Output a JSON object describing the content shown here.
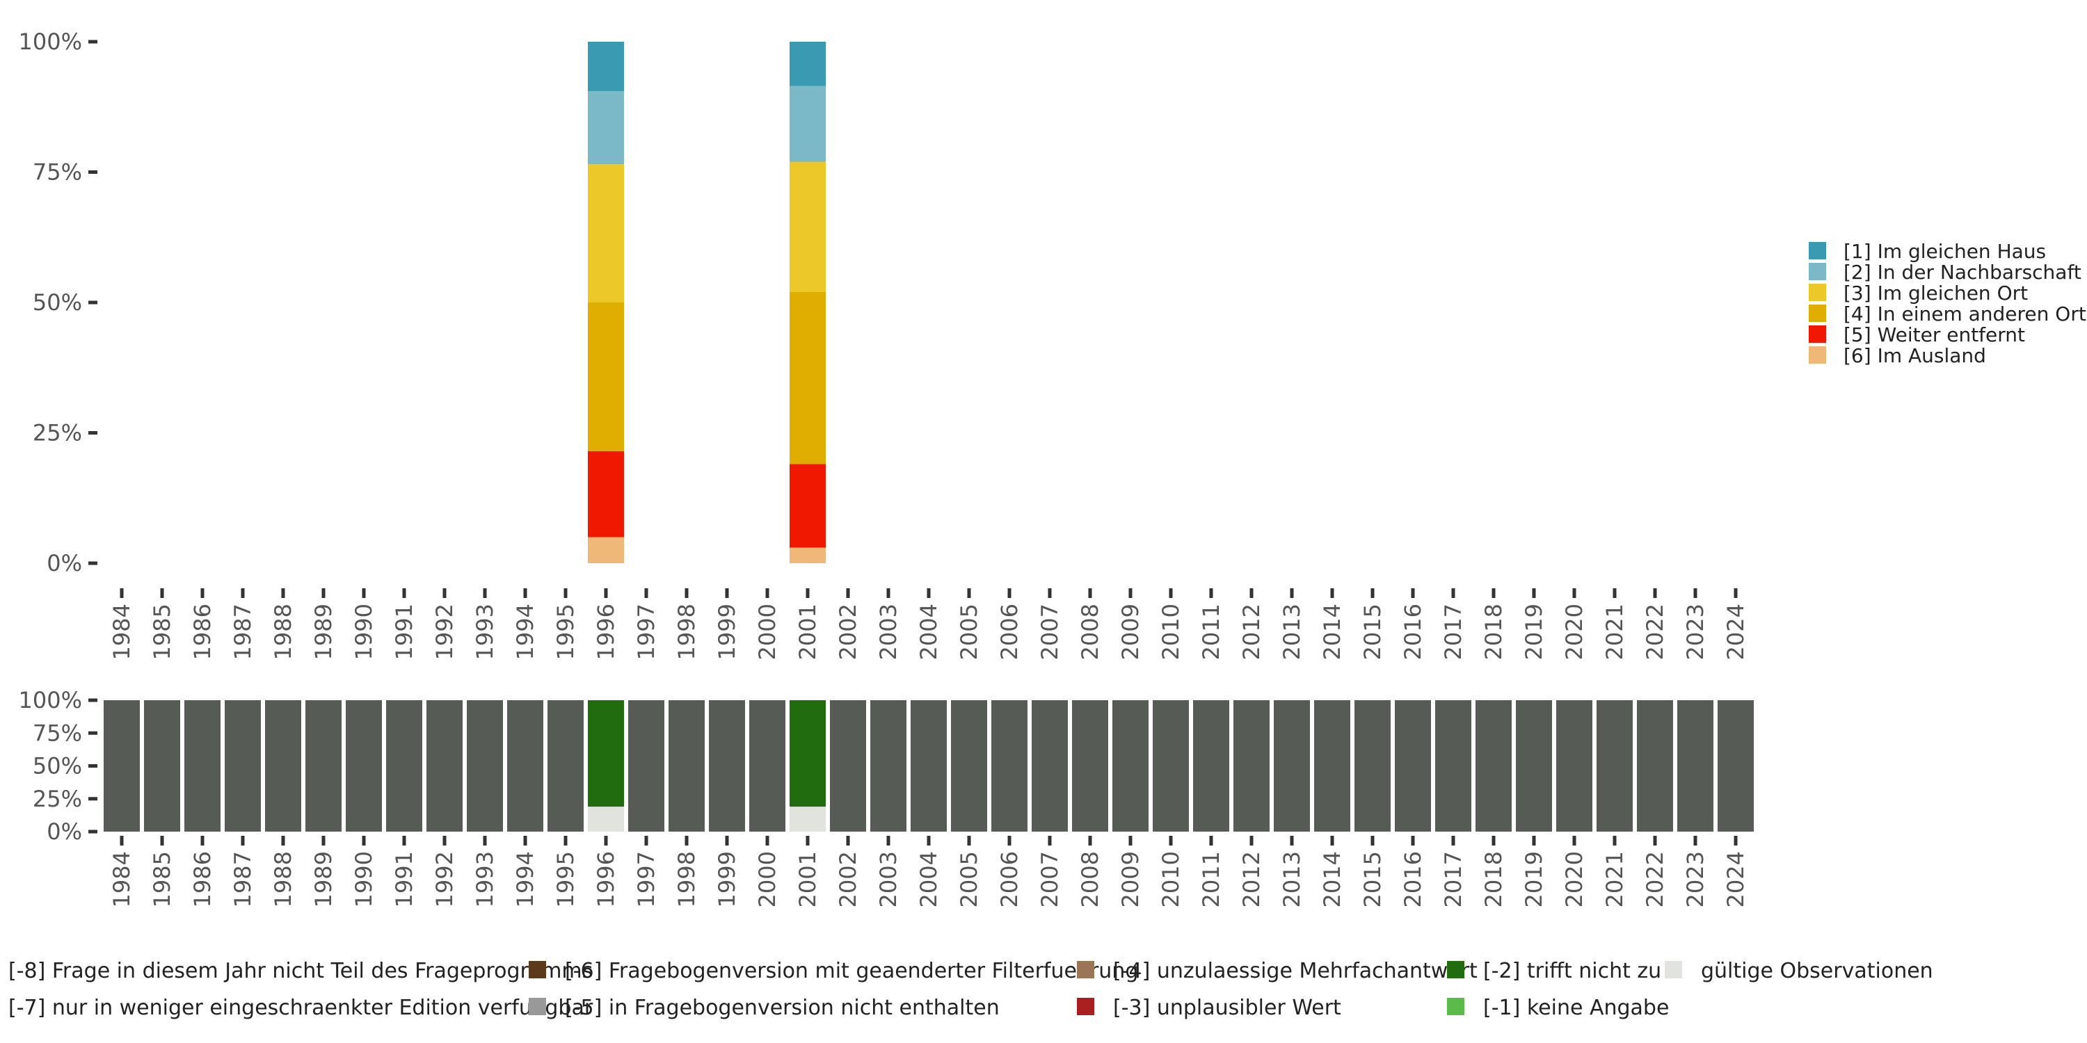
{
  "chart_data": [
    {
      "type": "bar",
      "stacked": true,
      "percent": true,
      "x": [
        "1984",
        "1985",
        "1986",
        "1987",
        "1988",
        "1989",
        "1990",
        "1991",
        "1992",
        "1993",
        "1994",
        "1995",
        "1996",
        "1997",
        "1998",
        "1999",
        "2000",
        "2001",
        "2002",
        "2003",
        "2004",
        "2005",
        "2006",
        "2007",
        "2008",
        "2009",
        "2010",
        "2011",
        "2012",
        "2013",
        "2014",
        "2015",
        "2016",
        "2017",
        "2018",
        "2019",
        "2020",
        "2021",
        "2022",
        "2023",
        "2024"
      ],
      "ylim": [
        0,
        100
      ],
      "yticks": [
        "0%",
        "25%",
        "50%",
        "75%",
        "100%"
      ],
      "legend_position": "right",
      "series": [
        {
          "name": "[6] Im Ausland",
          "color": "#F0B878",
          "values": {
            "1996": 5,
            "2001": 3
          }
        },
        {
          "name": "[5] Weiter entfernt",
          "color": "#F01800",
          "values": {
            "1996": 16.5,
            "2001": 16
          }
        },
        {
          "name": "[4] In einem anderen Ort",
          "color": "#E0AE00",
          "values": {
            "1996": 28.5,
            "2001": 33
          }
        },
        {
          "name": "[3] Im gleichen Ort",
          "color": "#ECC928",
          "values": {
            "1996": 26.5,
            "2001": 25
          }
        },
        {
          "name": "[2] In der Nachbarschaft",
          "color": "#7BB8C8",
          "values": {
            "1996": 14,
            "2001": 14.5
          }
        },
        {
          "name": "[1] Im gleichen Haus",
          "color": "#3A9AB2",
          "values": {
            "1996": 9.5,
            "2001": 8.5
          }
        }
      ]
    },
    {
      "type": "bar",
      "stacked": true,
      "percent": true,
      "x": [
        "1984",
        "1985",
        "1986",
        "1987",
        "1988",
        "1989",
        "1990",
        "1991",
        "1992",
        "1993",
        "1994",
        "1995",
        "1996",
        "1997",
        "1998",
        "1999",
        "2000",
        "2001",
        "2002",
        "2003",
        "2004",
        "2005",
        "2006",
        "2007",
        "2008",
        "2009",
        "2010",
        "2011",
        "2012",
        "2013",
        "2014",
        "2015",
        "2016",
        "2017",
        "2018",
        "2019",
        "2020",
        "2021",
        "2022",
        "2023",
        "2024"
      ],
      "ylim": [
        0,
        100
      ],
      "yticks": [
        "0%",
        "25%",
        "50%",
        "75%",
        "100%"
      ],
      "legend_position": "bottom",
      "series": [
        {
          "name": "gültige Observationen",
          "color": "#E0E3DE",
          "values": {
            "1996": 19,
            "2001": 19
          }
        },
        {
          "name": "[-2] trifft nicht zu",
          "color": "#226C10",
          "values": {
            "1996": 81,
            "2001": 81
          }
        },
        {
          "name": "[-8] Frage in diesem Jahr nicht Teil des Frageprogramms",
          "color": "#565B56",
          "values": {
            "1984": 100,
            "1985": 100,
            "1986": 100,
            "1987": 100,
            "1988": 100,
            "1989": 100,
            "1990": 100,
            "1991": 100,
            "1992": 100,
            "1993": 100,
            "1994": 100,
            "1995": 100,
            "1997": 100,
            "1998": 100,
            "1999": 100,
            "2000": 100,
            "2002": 100,
            "2003": 100,
            "2004": 100,
            "2005": 100,
            "2006": 100,
            "2007": 100,
            "2008": 100,
            "2009": 100,
            "2010": 100,
            "2011": 100,
            "2012": 100,
            "2013": 100,
            "2014": 100,
            "2015": 100,
            "2016": 100,
            "2017": 100,
            "2018": 100,
            "2019": 100,
            "2020": 100,
            "2021": 100,
            "2022": 100,
            "2023": 100,
            "2024": 100
          }
        }
      ],
      "legend": [
        {
          "name": "[-8] Frage in diesem Jahr nicht Teil des Frageprogramms",
          "color": "#565B56"
        },
        {
          "name": "[-7] nur in weniger eingeschraenkter Edition verfuegbar",
          "color": "#565B56"
        },
        {
          "name": "[-6] Fragebogenversion mit geaenderter Filterfuehrung",
          "color": "#5A3A1A"
        },
        {
          "name": "[-5] in Fragebogenversion nicht enthalten",
          "color": "#999999"
        },
        {
          "name": "[-4] unzulaessige Mehrfachantwort",
          "color": "#9A7656"
        },
        {
          "name": "[-3] unplausibler Wert",
          "color": "#AA2020"
        },
        {
          "name": "[-2] trifft nicht zu",
          "color": "#226C10"
        },
        {
          "name": "[-1] keine Angabe",
          "color": "#5BBB4A"
        },
        {
          "name": "gültige Observationen",
          "color": "#E0E3DE"
        }
      ]
    }
  ]
}
